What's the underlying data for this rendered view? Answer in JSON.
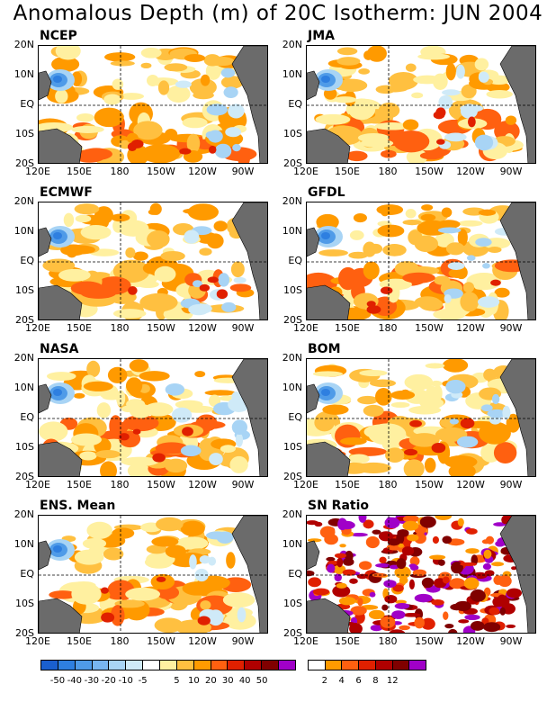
{
  "title": "Anomalous Depth (m) of 20C Isotherm: JUN 2004",
  "lat_labels": [
    "20N",
    "10N",
    "EQ",
    "10S",
    "20S"
  ],
  "lon_labels": [
    "120E",
    "150E",
    "180",
    "150W",
    "120W",
    "90W"
  ],
  "panels": [
    {
      "name": "NCEP"
    },
    {
      "name": "JMA"
    },
    {
      "name": "ECMWF"
    },
    {
      "name": "GFDL"
    },
    {
      "name": "NASA"
    },
    {
      "name": "BOM"
    },
    {
      "name": "ENS. Mean"
    },
    {
      "name": "SN Ratio"
    }
  ],
  "colorbar_anomaly": {
    "colors": [
      "#1a5fcf",
      "#2e7fe0",
      "#4f9be8",
      "#78b6f0",
      "#a8d4f5",
      "#cfeaf8",
      "#ffffff",
      "#fff0a0",
      "#ffc040",
      "#ff9a00",
      "#ff6010",
      "#e02000",
      "#b00000",
      "#800000",
      "#a000c8"
    ],
    "ticks": [
      "-50",
      "-40",
      "-30",
      "-20",
      "-10",
      "-5",
      "5",
      "10",
      "20",
      "30",
      "40",
      "50"
    ]
  },
  "colorbar_snr": {
    "colors": [
      "#ffffff",
      "#ff9a00",
      "#ff6010",
      "#e02000",
      "#b00000",
      "#800000",
      "#a000c8"
    ],
    "ticks": [
      "2",
      "4",
      "6",
      "8",
      "12"
    ]
  }
}
